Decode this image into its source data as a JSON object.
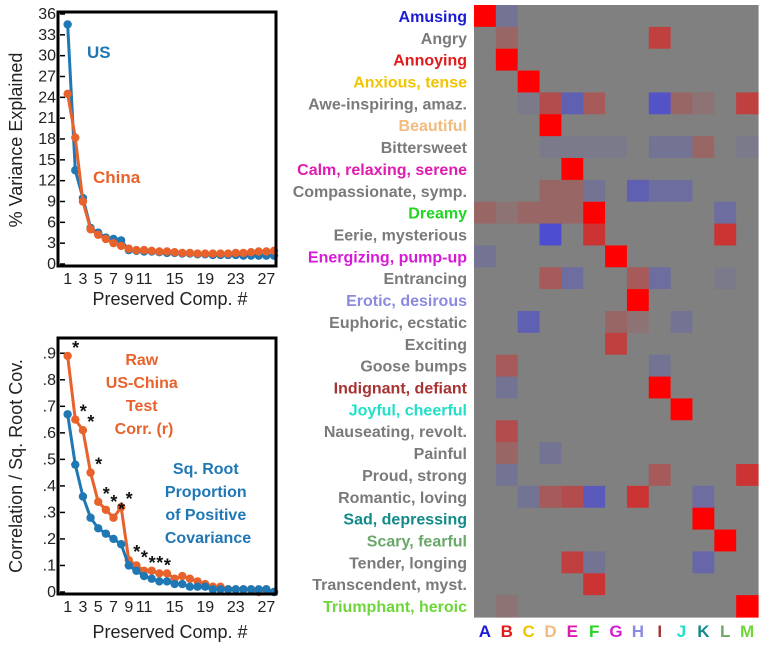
{
  "chart_data": [
    {
      "type": "line",
      "xlabel": "Preserved Comp. #",
      "ylabel": "% Variance Explained",
      "x_ticks": [
        "1",
        "3",
        "5",
        "7",
        "9",
        "11",
        "15",
        "19",
        "23",
        "27"
      ],
      "y_ticks": [
        "0",
        "3",
        "6",
        "9",
        "12",
        "15",
        "18",
        "21",
        "24",
        "27",
        "30",
        "33",
        "36"
      ],
      "xlim": [
        0,
        28
      ],
      "ylim": [
        0,
        36
      ],
      "grid": false,
      "series": [
        {
          "name": "US",
          "color": "#1f77b4",
          "x": [
            1,
            2,
            3,
            4,
            5,
            6,
            7,
            8,
            9,
            10,
            11,
            12,
            13,
            14,
            15,
            16,
            17,
            18,
            19,
            20,
            21,
            22,
            23,
            24,
            25,
            26,
            27,
            28
          ],
          "values": [
            34.5,
            13.5,
            9.5,
            5.2,
            4.5,
            3.8,
            3.6,
            3.4,
            2.0,
            1.9,
            1.8,
            1.8,
            1.7,
            1.6,
            1.6,
            1.5,
            1.5,
            1.4,
            1.4,
            1.3,
            1.3,
            1.3,
            1.3,
            1.2,
            1.2,
            1.2,
            1.2,
            1.2
          ]
        },
        {
          "name": "China",
          "color": "#e8622c",
          "x": [
            1,
            2,
            3,
            4,
            5,
            6,
            7,
            8,
            9,
            10,
            11,
            12,
            13,
            14,
            15,
            16,
            17,
            18,
            19,
            20,
            21,
            22,
            23,
            24,
            25,
            26,
            27,
            28
          ],
          "values": [
            24.5,
            18.2,
            9.0,
            5.0,
            4.2,
            3.6,
            3.0,
            2.6,
            2.2,
            2.0,
            2.0,
            1.9,
            1.8,
            1.8,
            1.7,
            1.6,
            1.6,
            1.5,
            1.5,
            1.5,
            1.5,
            1.5,
            1.6,
            1.6,
            1.7,
            1.8,
            1.8,
            1.9
          ]
        }
      ]
    },
    {
      "type": "line",
      "xlabel": "Preserved Comp. #",
      "ylabel": "Correlation / Sq. Root Cov.",
      "x_ticks": [
        "1",
        "3",
        "5",
        "7",
        "9",
        "11",
        "15",
        "19",
        "23",
        "27"
      ],
      "y_ticks": [
        "0",
        ".1",
        ".2",
        ".3",
        ".4",
        ".5",
        ".6",
        ".7",
        ".8",
        ".9"
      ],
      "xlim": [
        0,
        28
      ],
      "ylim": [
        0,
        0.95
      ],
      "grid": false,
      "series": [
        {
          "name": "Raw US-China Test Corr. (r)",
          "color": "#e8622c",
          "x": [
            1,
            2,
            3,
            4,
            5,
            6,
            7,
            8,
            9,
            10,
            11,
            12,
            13,
            14,
            15,
            16,
            17,
            18,
            19,
            20,
            21,
            22,
            23,
            24,
            25,
            26,
            27,
            28
          ],
          "values": [
            0.89,
            0.65,
            0.61,
            0.45,
            0.34,
            0.31,
            0.28,
            0.32,
            0.12,
            0.1,
            0.08,
            0.08,
            0.07,
            0.07,
            0.05,
            0.06,
            0.05,
            0.04,
            0.03,
            0.02,
            0.02,
            0.01,
            0.01,
            0.01,
            0.01,
            0.0,
            0.01,
            0.0
          ]
        },
        {
          "name": "Sq. Root Proportion of Positive Covariance",
          "color": "#1f77b4",
          "x": [
            1,
            2,
            3,
            4,
            5,
            6,
            7,
            8,
            9,
            10,
            11,
            12,
            13,
            14,
            15,
            16,
            17,
            18,
            19,
            20,
            21,
            22,
            23,
            24,
            25,
            26,
            27,
            28
          ],
          "values": [
            0.67,
            0.48,
            0.36,
            0.28,
            0.24,
            0.22,
            0.2,
            0.18,
            0.1,
            0.08,
            0.06,
            0.05,
            0.04,
            0.04,
            0.03,
            0.03,
            0.02,
            0.02,
            0.02,
            0.01,
            0.01,
            0.01,
            0.01,
            0.01,
            0.01,
            0.01,
            0.01,
            0.0
          ]
        }
      ],
      "significance_marker": "*",
      "significant_x": [
        1,
        2,
        3,
        4,
        5,
        6,
        7,
        8,
        9,
        10,
        11,
        12,
        13
      ]
    },
    {
      "type": "heatmap",
      "colormap": "blue-gray-red",
      "rows": [
        "Amusing",
        "Angry",
        "Annoying",
        "Anxious, tense",
        "Awe-inspiring, amaz.",
        "Beautiful",
        "Bittersweet",
        "Calm, relaxing, serene",
        "Compassionate, symp.",
        "Dreamy",
        "Eerie, mysterious",
        "Energizing, pump-up",
        "Entrancing",
        "Erotic, desirous",
        "Euphoric, ecstatic",
        "Exciting",
        "Goose bumps",
        "Indignant, defiant",
        "Joyful, cheerful",
        "Nauseating, revolt.",
        "Painful",
        "Proud, strong",
        "Romantic, loving",
        "Sad, depressing",
        "Scary, fearful",
        "Tender, longing",
        "Transcendent, myst.",
        "Triumphant, heroic"
      ],
      "row_colors": [
        "#1b1bd6",
        "#7a7a7a",
        "#e01b1b",
        "#f2c400",
        "#7a7a7a",
        "#f2bb7d",
        "#7a7a7a",
        "#e01bb0",
        "#7a7a7a",
        "#22d622",
        "#7a7a7a",
        "#d61bd6",
        "#7a7a7a",
        "#8a8ae0",
        "#7a7a7a",
        "#7a7a7a",
        "#7a7a7a",
        "#a83232",
        "#22e0c8",
        "#7a7a7a",
        "#7a7a7a",
        "#7a7a7a",
        "#7a7a7a",
        "#128a8a",
        "#6aa86a",
        "#7a7a7a",
        "#7a7a7a",
        "#6ed63a"
      ],
      "columns": [
        "A",
        "B",
        "C",
        "D",
        "E",
        "F",
        "G",
        "H",
        "I",
        "J",
        "K",
        "L",
        "M"
      ],
      "column_colors": [
        "#1b1bd6",
        "#e01b1b",
        "#f2c400",
        "#f2bb7d",
        "#e01bb0",
        "#22d622",
        "#d61bd6",
        "#8a8ae0",
        "#a83232",
        "#22e0c8",
        "#128a8a",
        "#6aa86a",
        "#6ed63a"
      ],
      "values": [
        [
          1.0,
          -0.2,
          0,
          0,
          0,
          0,
          0,
          0,
          0,
          0,
          0,
          0,
          0
        ],
        [
          0,
          0.2,
          0,
          0,
          0,
          0,
          0,
          0,
          0.5,
          0,
          0,
          0,
          0
        ],
        [
          0,
          1.0,
          0,
          0,
          0,
          0,
          0,
          0,
          0,
          0,
          0,
          0,
          0
        ],
        [
          0,
          0,
          1.0,
          0,
          0,
          0,
          0,
          0,
          0,
          0,
          0,
          0,
          0
        ],
        [
          0,
          0,
          -0.1,
          0.4,
          -0.5,
          0.3,
          0,
          0,
          -0.7,
          0.2,
          0.1,
          0,
          0.5
        ],
        [
          0,
          0,
          0,
          1.0,
          0,
          0,
          0,
          0,
          0,
          0,
          0,
          0,
          0
        ],
        [
          0,
          0,
          0,
          -0.1,
          -0.1,
          -0.1,
          -0.1,
          0,
          -0.2,
          -0.2,
          0.2,
          0,
          -0.1
        ],
        [
          0,
          0,
          0,
          0,
          1.0,
          0,
          0,
          0,
          0,
          0,
          0,
          0,
          0
        ],
        [
          0,
          0,
          0,
          0.2,
          0.2,
          -0.2,
          0,
          -0.5,
          -0.3,
          -0.3,
          0,
          0,
          0
        ],
        [
          0.2,
          0.1,
          0.2,
          0.2,
          0.2,
          1.0,
          0,
          0,
          0,
          0,
          0,
          -0.3,
          0
        ],
        [
          0,
          0,
          0,
          -0.8,
          0,
          0.6,
          0,
          0,
          0,
          0,
          0,
          0.6,
          0
        ],
        [
          -0.2,
          0,
          0,
          0,
          0,
          0,
          1.0,
          0,
          0,
          0,
          0,
          0,
          0
        ],
        [
          0,
          0,
          0,
          0.3,
          -0.3,
          0,
          0,
          0.3,
          -0.3,
          0,
          0,
          -0.1,
          0
        ],
        [
          0,
          0,
          0,
          0,
          0,
          0,
          0,
          1.0,
          0,
          0,
          0,
          0,
          0
        ],
        [
          0,
          0,
          -0.5,
          0,
          0,
          0,
          0.2,
          0.1,
          0,
          -0.2,
          0,
          0,
          0
        ],
        [
          0,
          0,
          0,
          0,
          0,
          0,
          0.5,
          0,
          0,
          0,
          0,
          0,
          0
        ],
        [
          0,
          0.3,
          0,
          0,
          0,
          0,
          0,
          0,
          -0.2,
          0,
          0,
          0,
          0
        ],
        [
          0,
          -0.2,
          0,
          0,
          0,
          0,
          0,
          0,
          1.0,
          0,
          0,
          0,
          0
        ],
        [
          0,
          0,
          0,
          0,
          0,
          0,
          0,
          0,
          0,
          1.0,
          0,
          0,
          0
        ],
        [
          0,
          0.4,
          0,
          0,
          0,
          0,
          0,
          0,
          0,
          0,
          0,
          0,
          0
        ],
        [
          0,
          0.2,
          0,
          -0.2,
          0,
          0,
          0,
          0,
          0,
          0,
          0,
          0,
          0
        ],
        [
          0,
          -0.2,
          0,
          0,
          0,
          0,
          0,
          0,
          0.3,
          0,
          0,
          0,
          0.6
        ],
        [
          0,
          0,
          -0.2,
          0.3,
          0.4,
          -0.6,
          0,
          0.6,
          0,
          0,
          -0.3,
          0,
          0
        ],
        [
          0,
          0,
          0,
          0,
          0,
          0,
          0,
          0,
          0,
          0,
          1.0,
          0,
          0
        ],
        [
          0,
          0,
          0,
          0,
          0,
          0,
          0,
          0,
          0,
          0,
          0,
          1.0,
          0
        ],
        [
          0,
          0,
          0,
          0,
          0.5,
          -0.2,
          0,
          0,
          0,
          0,
          -0.4,
          0,
          0
        ],
        [
          0,
          0,
          0,
          0,
          0,
          0.6,
          0,
          0,
          0,
          0,
          0,
          0,
          0
        ],
        [
          0,
          0.1,
          0,
          0,
          0,
          0,
          0,
          0,
          0,
          0,
          0,
          0,
          1.0
        ]
      ]
    }
  ]
}
